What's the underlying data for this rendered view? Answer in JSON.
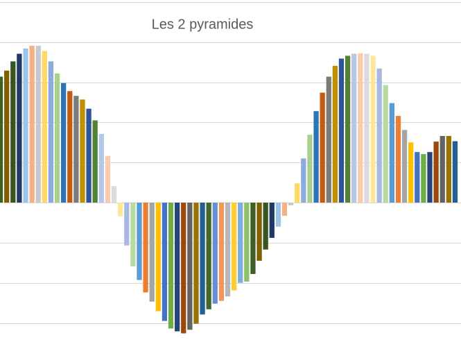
{
  "chart_data": {
    "type": "bar",
    "title": "Les 2 pyramides",
    "categories": [
      null,
      null,
      null,
      null,
      null,
      null,
      null,
      null,
      null,
      null,
      null,
      null,
      null,
      null,
      null,
      null,
      null,
      null,
      null,
      null,
      null,
      null,
      null,
      null,
      null,
      null,
      null,
      null,
      null,
      null,
      null,
      null,
      null,
      null,
      null,
      null,
      null,
      null,
      null,
      null,
      null,
      null,
      null,
      null,
      null,
      null,
      null,
      null,
      null,
      null,
      null,
      null,
      null,
      null,
      null,
      null,
      null,
      null,
      null,
      null,
      null,
      null,
      null,
      null,
      null,
      null,
      null,
      null,
      null,
      null,
      null,
      null,
      null
    ],
    "values": [
      3.14,
      3.29,
      3.52,
      3.71,
      3.84,
      3.91,
      3.91,
      3.78,
      3.52,
      3.22,
      2.98,
      2.78,
      2.66,
      2.57,
      2.34,
      2.05,
      1.71,
      1.16,
      0.41,
      -0.34,
      -1.07,
      -1.59,
      -1.93,
      -2.24,
      -2.47,
      -2.71,
      -2.95,
      -3.14,
      -3.21,
      -3.26,
      -3.17,
      -3.02,
      -2.79,
      -2.66,
      -2.52,
      -2.45,
      -2.34,
      -2.19,
      -2.0,
      -1.97,
      -1.78,
      -1.45,
      -1.17,
      -0.88,
      -0.6,
      -0.33,
      -0.07,
      0.48,
      1.1,
      1.69,
      2.28,
      2.74,
      3.14,
      3.41,
      3.59,
      3.66,
      3.71,
      3.72,
      3.71,
      3.66,
      3.34,
      2.93,
      2.48,
      2.16,
      1.81,
      1.5,
      1.26,
      1.21,
      1.26,
      1.52,
      1.66,
      1.66,
      1.53
    ],
    "palette": [
      "#3f5f25",
      "#7f6000",
      "#375623",
      "#203864",
      "#9dc3e6",
      "#f4b183",
      "#c9c9c9",
      "#ffd966",
      "#8faadc",
      "#a9d18e",
      "#2e75b6",
      "#c55a11",
      "#7b7b7b",
      "#bf9000",
      "#2f5597",
      "#548235",
      "#b4c7e7",
      "#f8cbad",
      "#dbdbdb",
      "#ffe699",
      "#a9b8e3",
      "#b7dba0",
      "#5b9bd5",
      "#ed7d31",
      "#a5a5a5",
      "#ffc000",
      "#4472c4",
      "#70ad47",
      "#264478",
      "#9e480e",
      "#636363",
      "#997300",
      "#255e91",
      "#43682b",
      "#698ed0",
      "#f1975a",
      "#b7b7b7",
      "#ffcd33",
      "#7cafdd",
      "#8cc168"
    ],
    "ylim": [
      -3.7,
      5.05
    ],
    "yticks": [
      -3,
      -2,
      -1,
      0,
      1,
      2,
      3,
      4,
      5
    ],
    "grid": true
  }
}
